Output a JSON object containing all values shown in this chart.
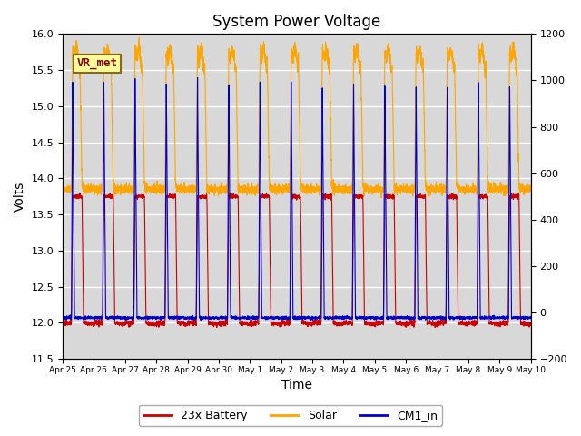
{
  "title": "System Power Voltage",
  "xlabel": "Time",
  "ylabel": "Volts",
  "ylim_left": [
    11.5,
    16.0
  ],
  "ylim_right": [
    -200,
    1200
  ],
  "yticks_left": [
    11.5,
    12.0,
    12.5,
    13.0,
    13.5,
    14.0,
    14.5,
    15.0,
    15.5,
    16.0
  ],
  "yticks_right": [
    -200,
    0,
    200,
    400,
    600,
    800,
    1000,
    1200
  ],
  "bg_color": "#d8d8d8",
  "fig_color": "#ffffff",
  "grid_color": "#ffffff",
  "xtick_labels": [
    "Apr 25",
    "Apr 26",
    "Apr 27",
    "Apr 28",
    "Apr 29",
    "Apr 30",
    "May 1",
    "May 2",
    "May 3",
    "May 4",
    "May 5",
    "May 6",
    "May 7",
    "May 8",
    "May 9",
    "May 10"
  ],
  "battery_color": "#cc0000",
  "solar_color": "#ffa500",
  "cm1_color": "#0000cc",
  "legend_labels": [
    "23x Battery",
    "Solar",
    "CM1_in"
  ],
  "annotation_text": "VR_met"
}
